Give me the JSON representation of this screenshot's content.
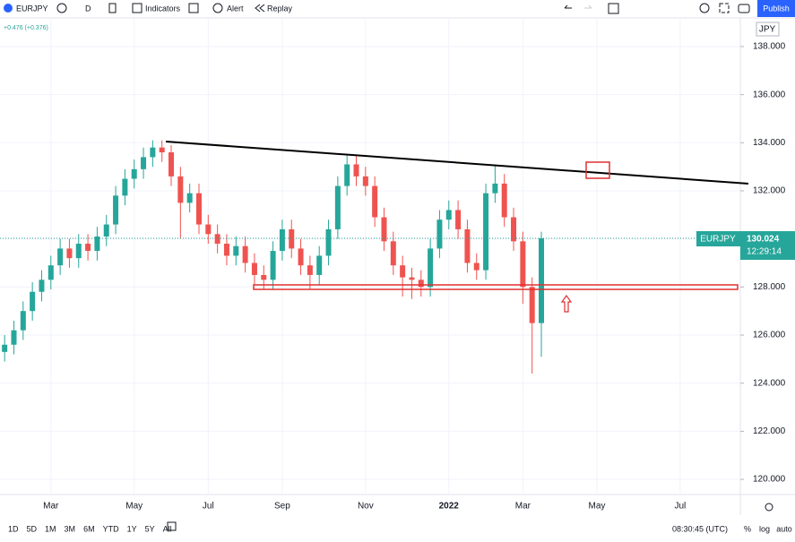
{
  "toolbar": {
    "symbol": "EURJPY",
    "interval": "D",
    "indicators": "Indicators",
    "alert": "Alert",
    "replay": "Replay",
    "publish": "Publish"
  },
  "change": "+0.476 (+0.376)",
  "currency": "JPY",
  "symbol_tag": "EURJPY",
  "countdown": "12:29:14",
  "chart_data": {
    "type": "candlestick",
    "categories": [
      null,
      null,
      null,
      null,
      null,
      "Mar",
      null,
      null,
      null,
      null,
      null,
      null,
      null,
      null,
      "May",
      null,
      null,
      null,
      null,
      null,
      null,
      null,
      "Jul",
      null,
      null,
      null,
      null,
      null,
      null,
      null,
      "Sep",
      null,
      null,
      null,
      null,
      null,
      null,
      null,
      null,
      "Nov",
      null,
      null,
      null,
      null,
      null,
      null,
      null,
      null,
      "2022",
      null,
      null,
      null,
      null,
      null,
      null,
      null,
      "Mar",
      null,
      null,
      null,
      null,
      null,
      null,
      null,
      "May",
      null,
      null,
      null,
      null,
      null,
      null,
      null,
      null,
      "Jul",
      null,
      null,
      null,
      null,
      null,
      null
    ],
    "open": [
      125.3,
      125.6,
      126.2,
      127.0,
      127.8,
      128.3,
      128.9,
      129.6,
      129.2,
      129.8,
      129.5,
      130.1,
      130.6,
      131.8,
      132.5,
      132.9,
      133.4,
      133.8,
      133.6,
      132.6,
      131.5,
      131.9,
      130.6,
      130.2,
      129.8,
      129.3,
      129.7,
      129.0,
      128.5,
      128.3,
      129.5,
      130.4,
      129.6,
      128.9,
      128.5,
      129.3,
      130.4,
      132.2,
      133.1,
      132.6,
      132.2,
      130.9,
      129.9,
      128.9,
      128.4,
      128.3,
      128.0,
      129.6,
      130.8,
      131.2,
      130.4,
      129.0,
      128.7,
      131.9,
      132.3,
      130.9,
      129.9,
      128.0,
      126.5,
      null,
      null,
      null,
      null,
      null,
      null,
      null,
      null,
      null,
      null,
      null,
      null,
      null,
      null,
      null,
      null,
      null,
      null,
      null,
      null,
      null
    ],
    "high": [
      126.0,
      126.6,
      127.4,
      128.2,
      128.7,
      129.3,
      130.0,
      130.0,
      130.2,
      130.2,
      130.5,
      131.0,
      132.2,
      132.9,
      133.3,
      133.8,
      134.1,
      134.1,
      133.9,
      133.0,
      132.3,
      132.3,
      131.0,
      130.6,
      130.2,
      130.1,
      130.1,
      129.4,
      128.9,
      129.9,
      130.8,
      130.8,
      130.0,
      129.3,
      129.7,
      130.8,
      132.6,
      133.5,
      133.5,
      133.0,
      132.6,
      131.3,
      130.3,
      129.3,
      128.8,
      128.7,
      130.0,
      131.2,
      131.6,
      131.6,
      130.8,
      129.4,
      132.3,
      133.1,
      132.7,
      131.3,
      130.3,
      128.4,
      130.3,
      null,
      null,
      null,
      null,
      null,
      null,
      null,
      null,
      null,
      null,
      null,
      null,
      null,
      null,
      null,
      null,
      null,
      null,
      null,
      null,
      null
    ],
    "low": [
      124.9,
      125.2,
      125.8,
      126.6,
      127.4,
      127.9,
      128.5,
      128.8,
      128.8,
      129.1,
      129.1,
      129.7,
      130.2,
      131.4,
      132.1,
      132.5,
      133.0,
      133.2,
      132.2,
      130.0,
      131.1,
      130.2,
      129.8,
      129.4,
      128.9,
      128.9,
      128.6,
      128.1,
      127.9,
      127.9,
      129.1,
      129.2,
      128.5,
      127.9,
      128.1,
      128.9,
      130.0,
      131.8,
      132.2,
      131.8,
      130.5,
      129.5,
      128.5,
      127.6,
      127.5,
      127.6,
      127.6,
      129.2,
      130.4,
      130.0,
      128.6,
      128.3,
      128.3,
      131.5,
      130.5,
      129.5,
      127.3,
      124.4,
      125.1,
      null,
      null,
      null,
      null,
      null,
      null,
      null,
      null,
      null,
      null,
      null,
      null,
      null,
      null,
      null,
      null,
      null,
      null,
      null,
      null,
      null
    ],
    "close": [
      125.6,
      126.2,
      127.0,
      127.8,
      128.3,
      128.9,
      129.6,
      129.2,
      129.8,
      129.5,
      130.1,
      130.6,
      131.8,
      132.5,
      132.9,
      133.4,
      133.8,
      133.6,
      132.6,
      131.5,
      131.9,
      130.6,
      130.2,
      129.8,
      129.3,
      129.7,
      129.0,
      128.5,
      128.3,
      129.5,
      130.4,
      129.6,
      128.9,
      128.5,
      129.3,
      130.4,
      132.2,
      133.1,
      132.6,
      132.2,
      130.9,
      129.9,
      128.9,
      128.4,
      128.3,
      128.0,
      129.6,
      130.8,
      131.2,
      130.4,
      129.0,
      128.7,
      131.9,
      132.3,
      130.9,
      129.9,
      128.0,
      126.5,
      130.024,
      null,
      null,
      null,
      null,
      null,
      null,
      null,
      null,
      null,
      null,
      null,
      null,
      null,
      null,
      null,
      null,
      null,
      null,
      null,
      null,
      null
    ],
    "up_color": "#26a69a",
    "down_color": "#ef5350",
    "ylim": [
      119.37,
      139.19
    ],
    "yticks": [
      {
        "value": 120,
        "label": "120.000"
      },
      {
        "value": 122,
        "label": "122.000"
      },
      {
        "value": 124,
        "label": "124.000"
      },
      {
        "value": 126,
        "label": "126.000"
      },
      {
        "value": 128,
        "label": "128.000"
      },
      {
        "value": 130,
        "label": "130.000"
      },
      {
        "value": 132,
        "label": "132.000"
      },
      {
        "value": 134,
        "label": "134.000"
      },
      {
        "value": 136,
        "label": "136.000"
      },
      {
        "value": 138,
        "label": "138.000"
      }
    ],
    "grid": true
  },
  "bottom_bar": {
    "ranges": [
      "1D",
      "5D",
      "1M",
      "3M",
      "6M",
      "YTD",
      "1Y",
      "5Y",
      "All"
    ],
    "clock": "08:30:45 (UTC)",
    "percent": "%",
    "log": "log",
    "auto": "auto"
  }
}
